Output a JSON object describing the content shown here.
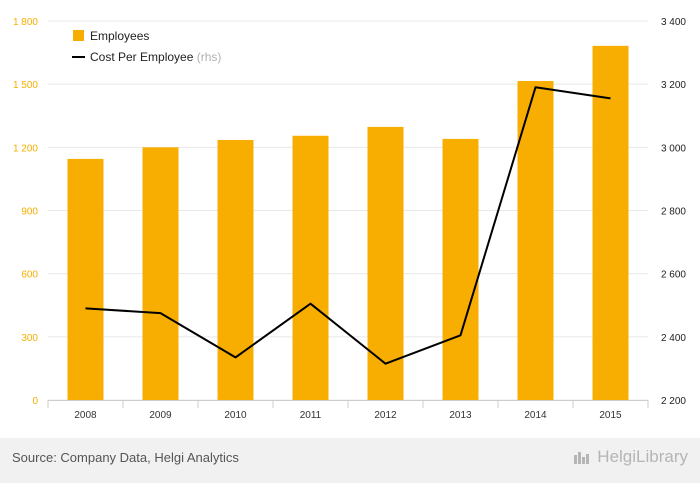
{
  "chart_data": {
    "type": "bar",
    "title": "",
    "xlabel": "",
    "categories": [
      "2008",
      "2009",
      "2010",
      "2011",
      "2012",
      "2013",
      "2014",
      "2015"
    ],
    "series": [
      {
        "name": "Employees",
        "type": "bar",
        "axis": "left",
        "values": [
          1145,
          1200,
          1235,
          1255,
          1297,
          1240,
          1515,
          1682
        ]
      },
      {
        "name": "Cost Per Employee",
        "name_suffix": "(rhs)",
        "type": "line",
        "axis": "right",
        "values": [
          2490,
          2475,
          2335,
          2505,
          2315,
          2405,
          3190,
          3155
        ]
      }
    ],
    "y_left": {
      "ylim": [
        0,
        1800
      ],
      "ticks": [
        0,
        300,
        600,
        900,
        1200,
        1500,
        1800
      ],
      "tick_labels": [
        "0",
        "300",
        "600",
        "900",
        "1 200",
        "1 500",
        "1 800"
      ]
    },
    "y_right": {
      "ylim": [
        2200,
        3400
      ],
      "ticks": [
        2200,
        2400,
        2600,
        2800,
        3000,
        3200,
        3400
      ],
      "tick_labels": [
        "2 200",
        "2 400",
        "2 600",
        "2 800",
        "3 000",
        "3 200",
        "3 400"
      ]
    },
    "grid": true,
    "legend": "top-left",
    "colors": {
      "bar": "#f8ae00",
      "line": "#000000",
      "left_axis_text": "#f8ae00",
      "right_axis_text": "#222222",
      "grid": "#e8e8e8"
    }
  },
  "footer": {
    "source": "Source: Company Data, Helgi Analytics",
    "brand": "HelgiLibrary",
    "brand_icon": "helgi-library-icon"
  }
}
